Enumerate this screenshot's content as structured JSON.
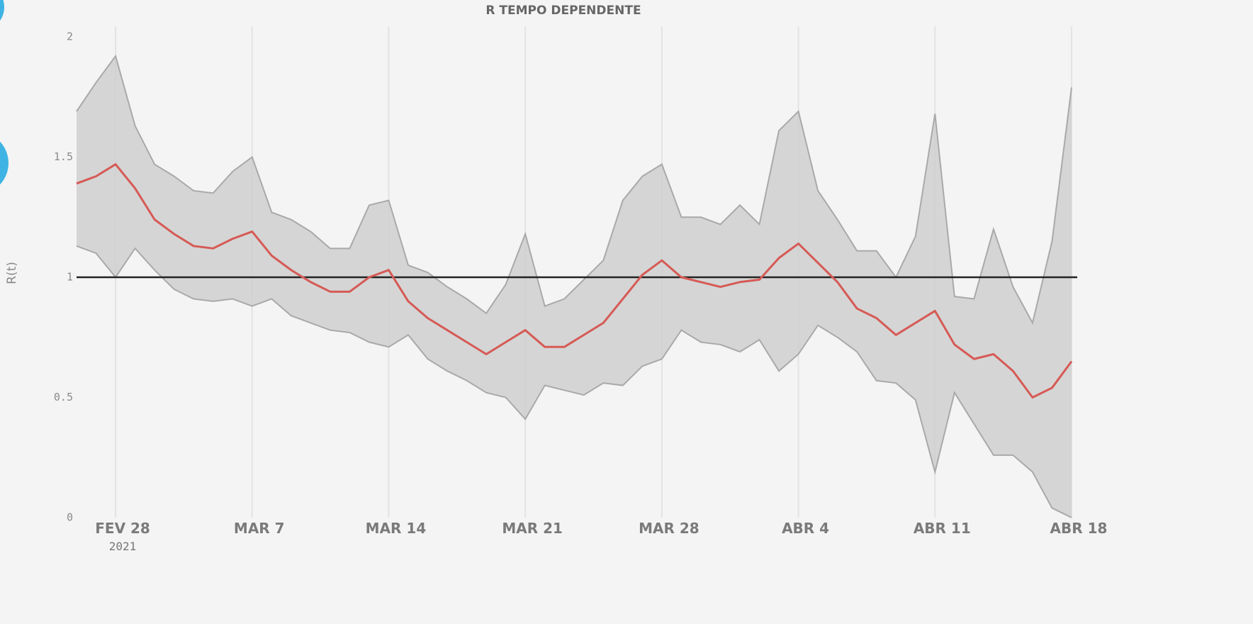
{
  "chart_data": {
    "type": "line",
    "title": "R TEMPO DEPENDENTE",
    "y_label": "R(t)",
    "x": [
      "2021-02-26",
      "2021-02-27",
      "2021-02-28",
      "2021-03-01",
      "2021-03-02",
      "2021-03-03",
      "2021-03-04",
      "2021-03-05",
      "2021-03-06",
      "2021-03-07",
      "2021-03-08",
      "2021-03-09",
      "2021-03-10",
      "2021-03-11",
      "2021-03-12",
      "2021-03-13",
      "2021-03-14",
      "2021-03-15",
      "2021-03-16",
      "2021-03-17",
      "2021-03-18",
      "2021-03-19",
      "2021-03-20",
      "2021-03-21",
      "2021-03-22",
      "2021-03-23",
      "2021-03-24",
      "2021-03-25",
      "2021-03-26",
      "2021-03-27",
      "2021-03-28",
      "2021-03-29",
      "2021-03-30",
      "2021-03-31",
      "2021-04-01",
      "2021-04-02",
      "2021-04-03",
      "2021-04-04",
      "2021-04-05",
      "2021-04-06",
      "2021-04-07",
      "2021-04-08",
      "2021-04-09",
      "2021-04-10",
      "2021-04-11",
      "2021-04-12",
      "2021-04-13",
      "2021-04-14",
      "2021-04-15",
      "2021-04-16",
      "2021-04-17",
      "2021-04-18"
    ],
    "series": [
      {
        "color": "#d65a55",
        "values": [
          1.39,
          1.42,
          1.47,
          1.37,
          1.24,
          1.18,
          1.13,
          1.12,
          1.16,
          1.19,
          1.09,
          1.03,
          0.98,
          0.94,
          0.94,
          1.0,
          1.03,
          0.9,
          0.83,
          0.78,
          0.73,
          0.68,
          0.73,
          0.78,
          0.71,
          0.71,
          0.76,
          0.81,
          0.91,
          1.01,
          1.07,
          1.0,
          0.98,
          0.96,
          0.98,
          0.99,
          1.08,
          1.14,
          1.06,
          0.98,
          0.87,
          0.83,
          0.76,
          0.81,
          0.86,
          0.72,
          0.66,
          0.68,
          0.61,
          0.5,
          0.54,
          0.65
        ]
      }
    ],
    "band": {
      "color": "#cfcfcf",
      "edge_color": "#a9a9a9",
      "upper": [
        1.69,
        1.81,
        1.92,
        1.63,
        1.47,
        1.42,
        1.36,
        1.35,
        1.44,
        1.5,
        1.27,
        1.24,
        1.19,
        1.12,
        1.12,
        1.3,
        1.32,
        1.05,
        1.02,
        0.96,
        0.91,
        0.85,
        0.97,
        1.18,
        0.88,
        0.91,
        0.99,
        1.07,
        1.32,
        1.42,
        1.47,
        1.25,
        1.25,
        1.22,
        1.3,
        1.22,
        1.61,
        1.69,
        1.36,
        1.24,
        1.11,
        1.11,
        1.0,
        1.17,
        1.68,
        0.92,
        0.91,
        1.2,
        0.96,
        0.81,
        1.15,
        1.79
      ],
      "lower": [
        1.13,
        1.1,
        1.0,
        1.12,
        1.03,
        0.95,
        0.91,
        0.9,
        0.91,
        0.88,
        0.91,
        0.84,
        0.81,
        0.78,
        0.77,
        0.73,
        0.71,
        0.76,
        0.66,
        0.61,
        0.57,
        0.52,
        0.5,
        0.41,
        0.55,
        0.53,
        0.51,
        0.56,
        0.55,
        0.63,
        0.66,
        0.78,
        0.73,
        0.72,
        0.69,
        0.74,
        0.61,
        0.68,
        0.8,
        0.75,
        0.69,
        0.57,
        0.56,
        0.49,
        0.19,
        0.52,
        0.39,
        0.26,
        0.26,
        0.19,
        0.04,
        0.0
      ]
    },
    "reference_line": 1,
    "reference_color": "#222222",
    "xlim": [
      "2021-02-26",
      "2021-04-18"
    ],
    "xticks": [
      {
        "value": "2021-02-28",
        "label": "FEV 28",
        "sublabel": "2021"
      },
      {
        "value": "2021-03-07",
        "label": "MAR 7"
      },
      {
        "value": "2021-03-14",
        "label": "MAR 14"
      },
      {
        "value": "2021-03-21",
        "label": "MAR 21"
      },
      {
        "value": "2021-03-28",
        "label": "MAR 28"
      },
      {
        "value": "2021-04-04",
        "label": "ABR 4"
      },
      {
        "value": "2021-04-11",
        "label": "ABR 11"
      },
      {
        "value": "2021-04-18",
        "label": "ABR 18"
      }
    ],
    "ylim": [
      0,
      2
    ],
    "yticks": [
      0,
      0.5,
      1,
      1.5,
      2
    ],
    "grid": "x"
  }
}
